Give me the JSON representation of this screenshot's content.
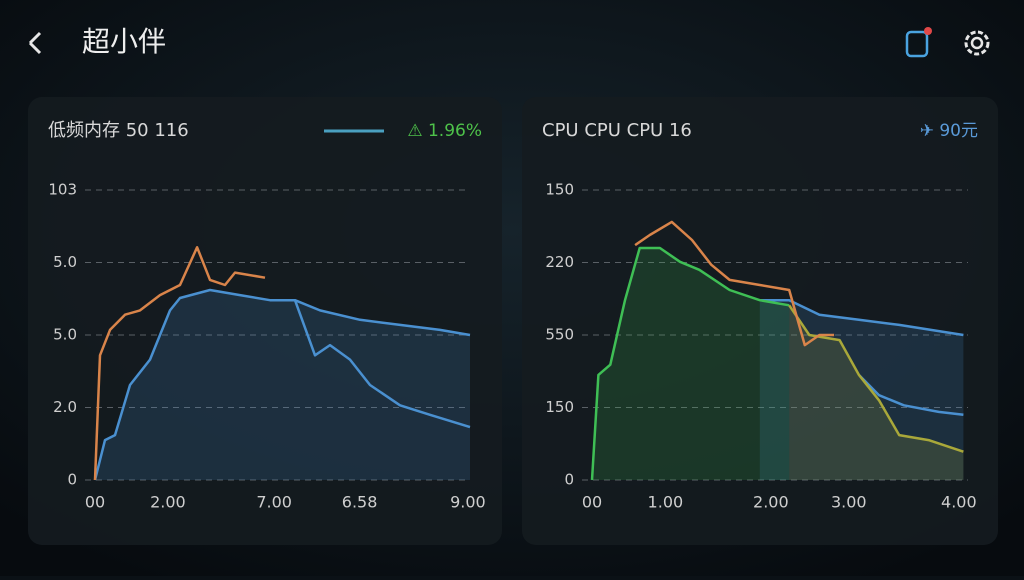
{
  "header": {
    "title": "超小伴"
  },
  "chart_data": [
    {
      "type": "line",
      "title": "低频内存 50 116",
      "legend_text": "⚠ 1.96%",
      "xlim": [
        0,
        9
      ],
      "ylim": [
        0,
        4
      ],
      "xticks": [
        {
          "value": 0,
          "label": "00"
        },
        {
          "value": 1.75,
          "label": "2.00"
        },
        {
          "value": 4.3,
          "label": "7.00"
        },
        {
          "value": 6.35,
          "label": "6.58"
        },
        {
          "value": 8.95,
          "label": "9.00"
        }
      ],
      "yticks": [
        0,
        {
          "value": 1,
          "label": "2.0"
        },
        {
          "value": 2,
          "label": "5.0"
        },
        {
          "value": 3,
          "label": "5.0"
        },
        {
          "value": 4,
          "label": "103"
        }
      ],
      "grid": true,
      "series": [
        {
          "color": "#4a90d0",
          "fill": true,
          "x": [
            0,
            0.24,
            0.48,
            0.84,
            1.32,
            1.8,
            2.04,
            2.76,
            3.48,
            4.2,
            4.8,
            5.4,
            6.36,
            7.32,
            8.28,
            9
          ],
          "values": [
            0,
            0.55,
            0.62,
            1.31,
            1.66,
            2.34,
            2.51,
            2.62,
            2.55,
            2.48,
            2.48,
            2.34,
            2.21,
            2.14,
            2.07,
            2.0
          ]
        },
        {
          "color": "#4a90d0",
          "x": [
            4.8,
            5.28,
            5.64,
            6.12,
            6.6,
            7.32,
            8.04,
            9
          ],
          "values": [
            2.48,
            1.72,
            1.86,
            1.66,
            1.31,
            1.03,
            0.9,
            0.73
          ]
        },
        {
          "color": "#d9844a",
          "x": [
            0,
            0.12,
            0.36,
            0.72,
            1.08,
            1.56,
            2.04,
            2.45,
            2.76,
            3.12,
            3.36,
            4.08
          ],
          "values": [
            0,
            1.72,
            2.07,
            2.28,
            2.34,
            2.55,
            2.69,
            3.21,
            2.76,
            2.69,
            2.86,
            2.79
          ]
        }
      ]
    },
    {
      "type": "line",
      "title": "CPU CPU CPU 16",
      "legend_text": "✈ 90元",
      "xlim": [
        0,
        4.1
      ],
      "ylim": [
        0,
        4
      ],
      "xticks": [
        {
          "value": 0,
          "label": "00"
        },
        {
          "value": 0.8,
          "label": "1.00"
        },
        {
          "value": 1.95,
          "label": "2.00"
        },
        {
          "value": 2.8,
          "label": "3.00"
        },
        {
          "value": 4,
          "label": "4.00"
        }
      ],
      "yticks": [
        0,
        {
          "value": 1,
          "label": "150"
        },
        {
          "value": 2,
          "label": "550"
        },
        {
          "value": 3,
          "label": "220"
        },
        {
          "value": 4,
          "label": "150"
        }
      ],
      "grid": true,
      "series": [
        {
          "color": "#4a90d0",
          "fill": true,
          "x": [
            1.83,
            2.15,
            2.48,
            2.91,
            3.35,
            4.05
          ],
          "values": [
            2.48,
            2.48,
            2.28,
            2.21,
            2.14,
            2.0
          ]
        },
        {
          "color": "#4a90d0",
          "x": [
            2.91,
            3.13,
            3.4,
            3.78,
            4.05
          ],
          "values": [
            1.45,
            1.17,
            1.03,
            0.94,
            0.9
          ]
        },
        {
          "color": "#3fbf55",
          "fill": true,
          "x": [
            0,
            0.07,
            0.2,
            0.36,
            0.52,
            0.74,
            0.96,
            1.17,
            1.5,
            1.83,
            2.15
          ],
          "values": [
            0,
            1.45,
            1.59,
            2.48,
            3.2,
            3.2,
            3.01,
            2.9,
            2.62,
            2.48,
            2.41
          ]
        },
        {
          "color": "#a9a83a",
          "fill": true,
          "x": [
            2.15,
            2.37,
            2.7,
            2.91,
            3.13,
            3.35,
            3.67,
            4.05
          ],
          "values": [
            2.41,
            2.0,
            1.93,
            1.45,
            1.1,
            0.62,
            0.55,
            0.39
          ]
        },
        {
          "color": "#d9844a",
          "x": [
            0.47,
            0.63,
            0.87,
            1.09,
            1.3,
            1.5,
            1.83,
            2.15,
            2.32,
            2.48,
            2.64
          ],
          "values": [
            3.24,
            3.38,
            3.56,
            3.31,
            2.97,
            2.76,
            2.69,
            2.62,
            1.86,
            2.0,
            2.0
          ]
        }
      ]
    }
  ]
}
